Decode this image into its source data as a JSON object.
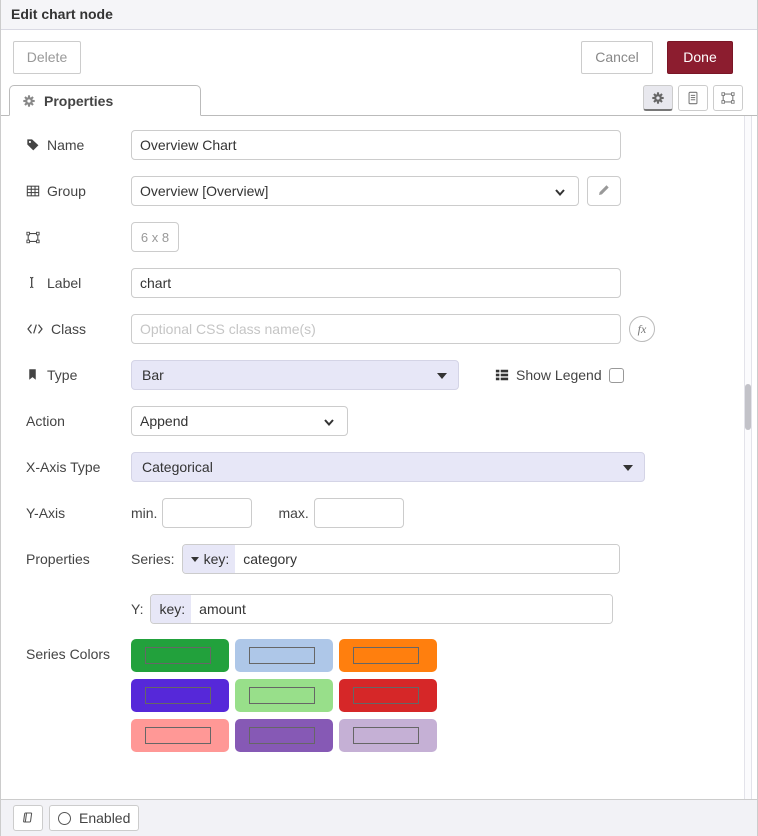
{
  "header": {
    "title": "Edit chart node"
  },
  "toolbar": {
    "delete": "Delete",
    "cancel": "Cancel",
    "done": "Done"
  },
  "tabbar": {
    "properties_tab": "Properties"
  },
  "form": {
    "name": {
      "label": "Name",
      "value": "Overview Chart"
    },
    "group": {
      "label": "Group",
      "value": "Overview [Overview]"
    },
    "size": {
      "value": "6 x 8"
    },
    "label_field": {
      "label": "Label",
      "value": "chart"
    },
    "class_field": {
      "label": "Class",
      "value": "",
      "placeholder": "Optional CSS class name(s)",
      "fx_label": "fx"
    },
    "type": {
      "label": "Type",
      "value": "Bar"
    },
    "legend": {
      "label": "Show Legend",
      "checked": false
    },
    "action": {
      "label": "Action",
      "value": "Append"
    },
    "xaxis": {
      "label": "X-Axis Type",
      "value": "Categorical"
    },
    "yaxis": {
      "label": "Y-Axis",
      "min_label": "min.",
      "min_value": "",
      "max_label": "max.",
      "max_value": ""
    },
    "properties": {
      "label": "Properties",
      "series_label": "Series:",
      "series_key_label": "key:",
      "series_key_value": "category",
      "y_label": "Y:",
      "y_key_label": "key:",
      "y_key_value": "amount"
    },
    "series_colors": {
      "label": "Series Colors",
      "colors": [
        "#22A13C",
        "#AEC7E8",
        "#FF7F0E",
        "#5628D9",
        "#98DF8A",
        "#D62728",
        "#FF9896",
        "#8659B5",
        "#C5B0D5"
      ]
    }
  },
  "footer": {
    "enabled": "Enabled"
  },
  "accent": {
    "done_bg": "#8C1D2F",
    "header_bg": "#f5f5f8"
  }
}
